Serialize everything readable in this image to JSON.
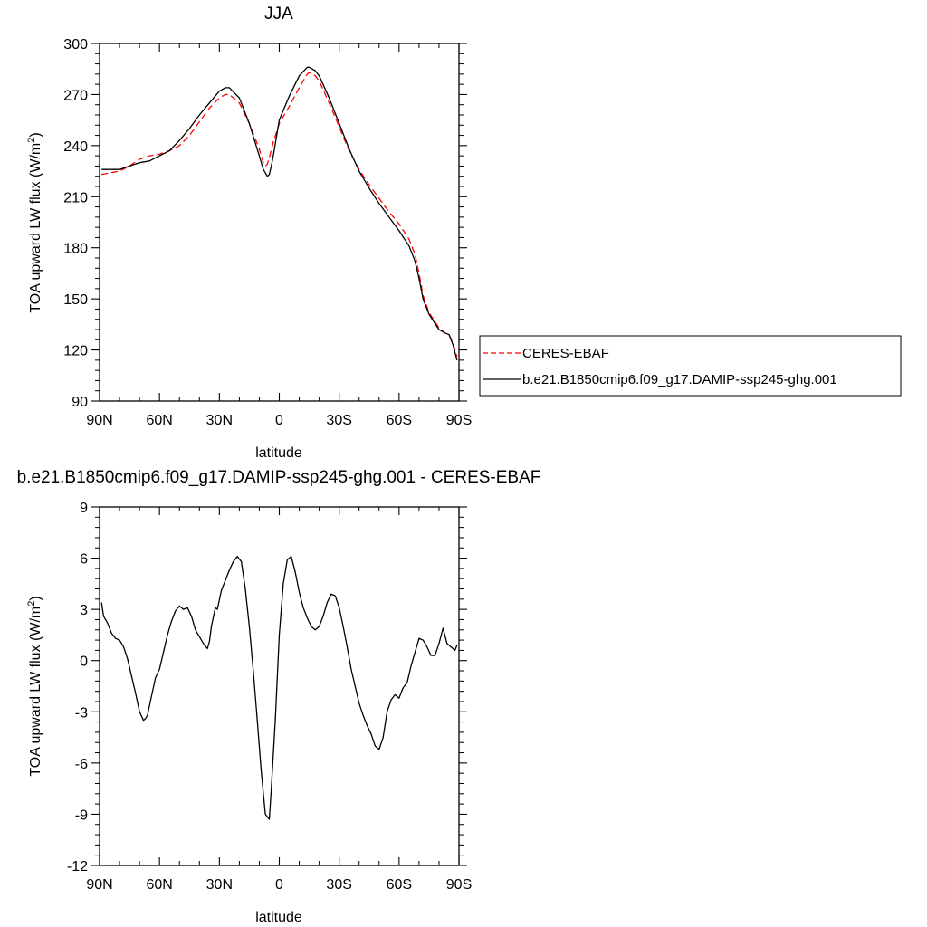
{
  "chart_data": [
    {
      "type": "line",
      "title": "JJA",
      "xlabel": "latitude",
      "ylabel": "TOA upward LW flux (W/m",
      "ylabel_sup": "2",
      "ylabel_close": ")",
      "xlim": [
        90,
        -90
      ],
      "ylim": [
        90,
        300
      ],
      "xticks": [
        90,
        60,
        30,
        0,
        -30,
        -60,
        -90
      ],
      "xtick_labels": [
        "90N",
        "60N",
        "30N",
        "0",
        "30S",
        "60S",
        "90S"
      ],
      "yticks": [
        90,
        120,
        150,
        180,
        210,
        240,
        270,
        300
      ],
      "ytick_labels": [
        "90",
        "120",
        "150",
        "180",
        "210",
        "240",
        "270",
        "300"
      ],
      "grid": false,
      "legend_position": "right",
      "series": [
        {
          "name": "CERES-EBAF",
          "color": "#ff0000",
          "dash": true,
          "x": [
            89,
            85,
            80,
            75,
            70,
            65,
            60,
            55,
            50,
            45,
            40,
            35,
            30,
            27,
            25,
            20,
            15,
            10,
            8,
            7,
            6,
            5,
            3,
            0,
            -5,
            -10,
            -14,
            -15,
            -18,
            -20,
            -25,
            -30,
            -35,
            -40,
            -45,
            -50,
            -55,
            -60,
            -65,
            -68,
            -70,
            -72,
            -75,
            -80,
            -83,
            -85,
            -87,
            -89
          ],
          "y": [
            223,
            224,
            225,
            228,
            232,
            234,
            235,
            237,
            240,
            246,
            254,
            262,
            268,
            270,
            270,
            265,
            253,
            238,
            230,
            228,
            229,
            233,
            242,
            253,
            263,
            274,
            282,
            283,
            281,
            278,
            265,
            251,
            237,
            226,
            217,
            209,
            201,
            194,
            185,
            176,
            165,
            152,
            142,
            133,
            130,
            129,
            124,
            116
          ]
        },
        {
          "name": "b.e21.B1850cmip6.f09_g17.DAMIP-ssp245-ghg.001",
          "color": "#000000",
          "dash": false,
          "x": [
            89,
            85,
            80,
            75,
            70,
            65,
            60,
            55,
            50,
            45,
            40,
            35,
            30,
            27,
            25,
            20,
            15,
            10,
            8,
            6,
            5,
            4,
            3,
            0,
            -5,
            -10,
            -14,
            -15,
            -18,
            -20,
            -25,
            -30,
            -35,
            -40,
            -45,
            -50,
            -55,
            -60,
            -65,
            -68,
            -70,
            -72,
            -75,
            -80,
            -83,
            -85,
            -87,
            -89
          ],
          "y": [
            226,
            226,
            226,
            228,
            230,
            231,
            234,
            237,
            243,
            250,
            258,
            265,
            272,
            274,
            274,
            268,
            253,
            234,
            226,
            222,
            223,
            228,
            234,
            255,
            269,
            281,
            286,
            286,
            284,
            281,
            268,
            253,
            238,
            225,
            215,
            206,
            198,
            190,
            181,
            172,
            162,
            150,
            141,
            132,
            130,
            129,
            123,
            114
          ]
        }
      ]
    },
    {
      "type": "line",
      "title": "b.e21.B1850cmip6.f09_g17.DAMIP-ssp245-ghg.001 - CERES-EBAF",
      "xlabel": "latitude",
      "ylabel": "TOA upward LW flux (W/m",
      "ylabel_sup": "2",
      "ylabel_close": ")",
      "xlim": [
        90,
        -90
      ],
      "ylim": [
        -12,
        9
      ],
      "xticks": [
        90,
        60,
        30,
        0,
        -30,
        -60,
        -90
      ],
      "xtick_labels": [
        "90N",
        "60N",
        "30N",
        "0",
        "30S",
        "60S",
        "90S"
      ],
      "yticks": [
        -12,
        -9,
        -6,
        -3,
        0,
        3,
        6,
        9
      ],
      "ytick_labels": [
        "-12",
        "-9",
        "-6",
        "-3",
        "0",
        "3",
        "6",
        "9"
      ],
      "grid": false,
      "series": [
        {
          "name": "b.e21.B1850cmip6.f09_g17.DAMIP-ssp245-ghg.001 - CERES-EBAF",
          "color": "#000000",
          "dash": false,
          "x": [
            89,
            88,
            86,
            84,
            82,
            80,
            78,
            76,
            74,
            72,
            70,
            68,
            67,
            66,
            64,
            62,
            60,
            58,
            56,
            54,
            52,
            50,
            48,
            46,
            44,
            42,
            40,
            38,
            36,
            35,
            34,
            32,
            31,
            29,
            27,
            25,
            23,
            21,
            19,
            17,
            15,
            13,
            11,
            9,
            7,
            5,
            4,
            2,
            0,
            -2,
            -4,
            -6,
            -8,
            -10,
            -12,
            -14,
            -16,
            -18,
            -20,
            -22,
            -24,
            -26,
            -28,
            -30,
            -32,
            -34,
            -36,
            -38,
            -40,
            -42,
            -44,
            -46,
            -48,
            -50,
            -52,
            -54,
            -56,
            -58,
            -60,
            -62,
            -64,
            -66,
            -68,
            -70,
            -72,
            -74,
            -76,
            -78,
            -80,
            -82,
            -84,
            -86,
            -88,
            -89
          ],
          "y": [
            3.4,
            2.6,
            2.2,
            1.6,
            1.3,
            1.2,
            0.8,
            0.1,
            -0.9,
            -1.9,
            -3.0,
            -3.5,
            -3.4,
            -3.2,
            -2.1,
            -1.0,
            -0.5,
            0.5,
            1.5,
            2.3,
            2.9,
            3.2,
            3.0,
            3.1,
            2.6,
            1.8,
            1.4,
            1.0,
            0.7,
            1.1,
            2.0,
            3.1,
            3.0,
            4.1,
            4.7,
            5.3,
            5.8,
            6.1,
            5.8,
            4.2,
            2.0,
            -0.6,
            -3.5,
            -6.5,
            -9.0,
            -9.3,
            -7.5,
            -3.5,
            1.5,
            4.5,
            5.9,
            6.1,
            5.2,
            4.0,
            3.1,
            2.5,
            2.0,
            1.8,
            2.0,
            2.6,
            3.4,
            3.9,
            3.8,
            3.1,
            2.0,
            0.8,
            -0.5,
            -1.5,
            -2.5,
            -3.2,
            -3.8,
            -4.3,
            -5.0,
            -5.2,
            -4.5,
            -3.0,
            -2.3,
            -2.0,
            -2.2,
            -1.6,
            -1.3,
            -0.3,
            0.5,
            1.3,
            1.2,
            0.8,
            0.3,
            0.3,
            1.0,
            1.9,
            1.0,
            0.8,
            0.6,
            0.9
          ]
        }
      ]
    }
  ]
}
